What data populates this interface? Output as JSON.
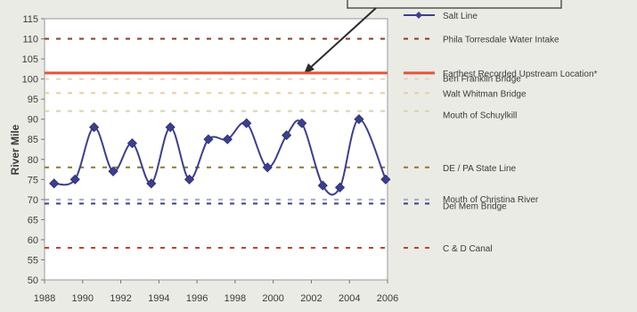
{
  "chart_data": {
    "type": "line",
    "xlabel": "",
    "ylabel": "River Mile",
    "xlim": [
      1988,
      2006
    ],
    "ylim": [
      50,
      115
    ],
    "x_ticks": [
      "1988",
      "1990",
      "1992",
      "1994",
      "1996",
      "1998",
      "2000",
      "2002",
      "2004",
      "2006"
    ],
    "y_ticks": [
      "50",
      "55",
      "60",
      "65",
      "70",
      "75",
      "80",
      "85",
      "90",
      "95",
      "100",
      "105",
      "110",
      "115"
    ],
    "legend_position": "right",
    "series": [
      {
        "name": "Salt Line",
        "color": "#3b3f8f",
        "x": [
          1988.5,
          1989.6,
          1990.6,
          1991.6,
          1992.6,
          1993.6,
          1994.6,
          1995.6,
          1996.6,
          1997.6,
          1998.6,
          1999.7,
          2000.7,
          2001.5,
          2002.6,
          2003.5,
          2004.5,
          2005.9
        ],
        "y": [
          74,
          75,
          88,
          77,
          84,
          74,
          88,
          75,
          85,
          85,
          89,
          78,
          86,
          89,
          73.5,
          73,
          90,
          75
        ]
      }
    ],
    "reference_lines": [
      {
        "name": "Phila Torresdale Water Intake",
        "y": 110,
        "color": "#8a3b22",
        "style": "dotted"
      },
      {
        "name": "Farthest Recorded Upstream Location*",
        "y": 101.5,
        "color": "#e2553a",
        "style": "solid"
      },
      {
        "name": "Ben Franklin Bridge",
        "y": 100,
        "color": "#e8d2c0",
        "style": "dotted"
      },
      {
        "name": "Walt Whitman Bridge",
        "y": 96.5,
        "color": "#e6cf90",
        "style": "dotted"
      },
      {
        "name": "Mouth of Schuylkill",
        "y": 92,
        "color": "#d8d4aa",
        "style": "dotted"
      },
      {
        "name": "DE / PA State Line",
        "y": 78,
        "color": "#8a7a2a",
        "style": "dotted"
      },
      {
        "name": "Mouth of Christina River",
        "y": 70,
        "color": "#a4acc4",
        "style": "dotted"
      },
      {
        "name": "Del Mem Bridge",
        "y": 69,
        "color": "#3b3f8f",
        "style": "dotted"
      },
      {
        "name": "C & D Canal",
        "y": 58,
        "color": "#b8462e",
        "style": "dotted"
      }
    ]
  }
}
